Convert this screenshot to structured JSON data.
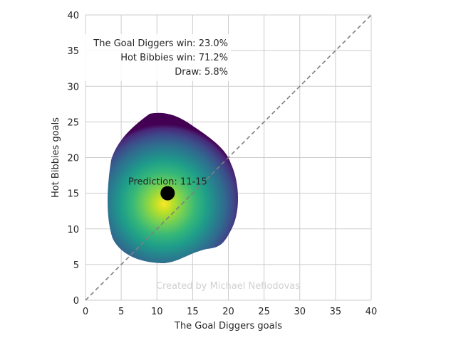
{
  "chart_data": {
    "type": "heatmap",
    "title": "",
    "xlabel": "The Goal Diggers goals",
    "ylabel": "Hot Bibbies goals",
    "xlim": [
      0,
      40
    ],
    "ylim": [
      0,
      40
    ],
    "xticks": [
      "0",
      "5",
      "10",
      "15",
      "20",
      "25",
      "30",
      "35",
      "40"
    ],
    "yticks": [
      "0",
      "5",
      "10",
      "15",
      "20",
      "25",
      "30",
      "35",
      "40"
    ],
    "grid": true,
    "colormap": "viridis",
    "density": {
      "peak": [
        11,
        13.5
      ],
      "extent_x": [
        3,
        21.5
      ],
      "extent_y": [
        5,
        26
      ]
    },
    "diagonal": {
      "from": [
        0,
        0
      ],
      "to": [
        40,
        40
      ],
      "style": "dashed",
      "color": "#808080"
    },
    "prediction": {
      "x": 11.5,
      "y": 15,
      "label": "Prediction: 11-15"
    },
    "win_probabilities": [
      "The Goal Diggers win: 23.0%",
      "Hot Bibbies win: 71.2%",
      "Draw: 5.8%"
    ],
    "watermark": "Created by Michael Nefiodovas"
  }
}
